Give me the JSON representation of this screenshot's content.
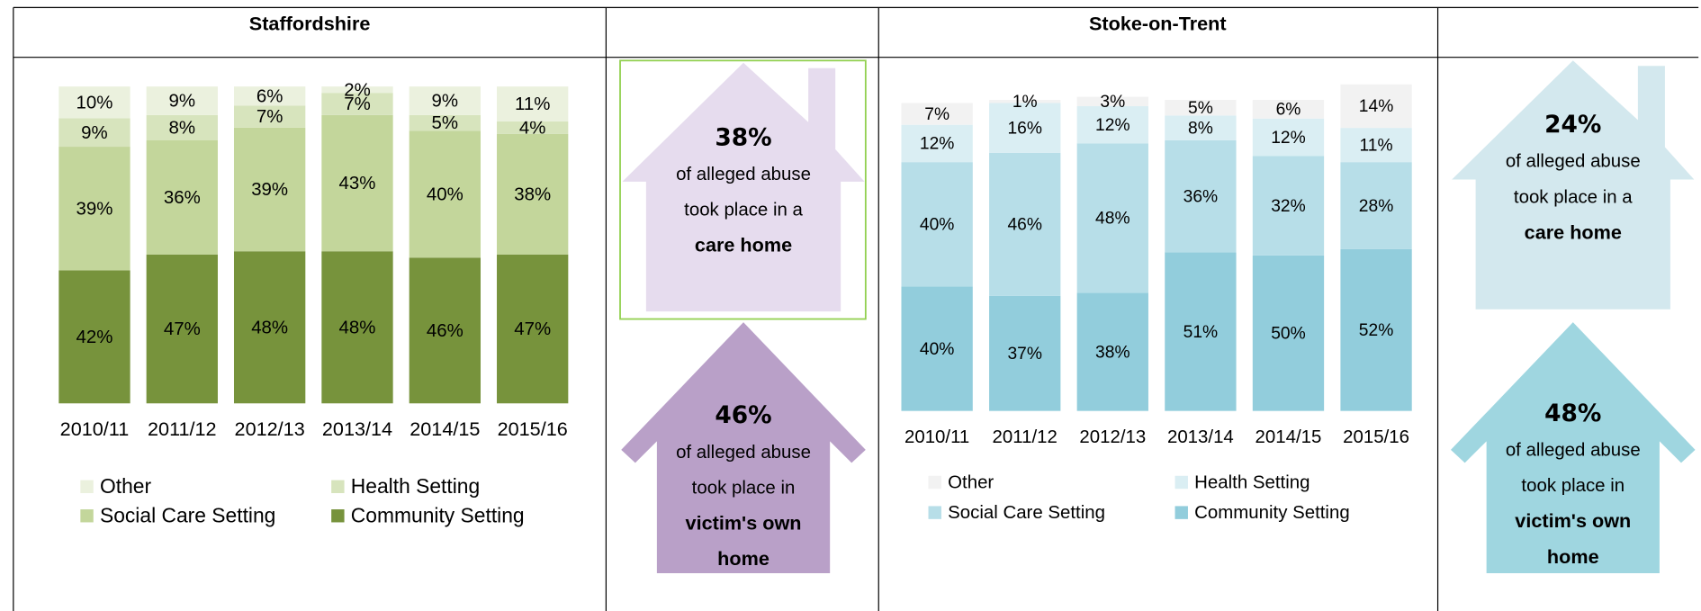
{
  "chart_data": [
    {
      "type": "bar",
      "stacked": true,
      "title": "Staffordshire",
      "categories": [
        "2010/11",
        "2011/12",
        "2012/13",
        "2013/14",
        "2014/15",
        "2015/16"
      ],
      "series": [
        {
          "name": "Community Setting",
          "color": "#77933c",
          "values": [
            42,
            47,
            48,
            48,
            46,
            47
          ],
          "value_labels": [
            "42%",
            "47%",
            "48%",
            "48%",
            "46%",
            "47%"
          ]
        },
        {
          "name": "Social Care Setting",
          "color": "#c3d69b",
          "values": [
            39,
            36,
            39,
            43,
            40,
            38
          ],
          "value_labels": [
            "39%",
            "36%",
            "39%",
            "43%",
            "40%",
            "38%"
          ]
        },
        {
          "name": "Health Setting",
          "color": "#d7e4bd",
          "values": [
            9,
            8,
            7,
            7,
            5,
            4
          ],
          "value_labels": [
            "9%",
            "8%",
            "7%",
            "7%",
            "5%",
            "4%"
          ]
        },
        {
          "name": "Other",
          "color": "#ebf1de",
          "values": [
            10,
            9,
            6,
            2,
            9,
            11
          ],
          "value_labels": [
            "10%",
            "9%",
            "6%",
            "2%",
            "9%",
            "11%"
          ]
        }
      ]
    },
    {
      "type": "bar",
      "stacked": true,
      "title": "Stoke-on-Trent",
      "categories": [
        "2010/11",
        "2011/12",
        "2012/13",
        "2013/14",
        "2014/15",
        "2015/16"
      ],
      "series": [
        {
          "name": "Community Setting",
          "color": "#92cddc",
          "values": [
            40,
            37,
            38,
            51,
            50,
            52
          ],
          "value_labels": [
            "40%",
            "37%",
            "38%",
            "51%",
            "50%",
            "52%"
          ]
        },
        {
          "name": "Social Care Setting",
          "color": "#b7dee8",
          "values": [
            40,
            46,
            48,
            36,
            32,
            28
          ],
          "value_labels": [
            "40%",
            "46%",
            "48%",
            "36%",
            "32%",
            "28%"
          ]
        },
        {
          "name": "Health Setting",
          "color": "#daeef3",
          "values": [
            12,
            16,
            12,
            8,
            12,
            11
          ],
          "value_labels": [
            "12%",
            "16%",
            "12%",
            "8%",
            "12%",
            "11%"
          ]
        },
        {
          "name": "Other",
          "color": "#f2f2f2",
          "values": [
            7,
            1,
            3,
            5,
            6,
            14
          ],
          "value_labels": [
            "7%",
            "1%",
            "3%",
            "5%",
            "6%",
            "14%"
          ]
        }
      ]
    }
  ],
  "infographics": [
    {
      "percent": "38%",
      "lines": [
        "of alleged abuse",
        "took place in a"
      ],
      "emphasis": [
        "care home"
      ],
      "color": "#e6dcee"
    },
    {
      "percent": "46%",
      "lines": [
        "of alleged abuse",
        "took place in"
      ],
      "emphasis": [
        "victim's own",
        "home"
      ],
      "color": "#b9a0c8"
    },
    {
      "percent": "24%",
      "lines": [
        "of alleged abuse",
        "took place in a"
      ],
      "emphasis": [
        "care home"
      ],
      "color": "#d3e8ee"
    },
    {
      "percent": "48%",
      "lines": [
        "of alleged abuse",
        "took place in"
      ],
      "emphasis": [
        "victim's own",
        "home"
      ],
      "color": "#9fd6e0"
    }
  ]
}
